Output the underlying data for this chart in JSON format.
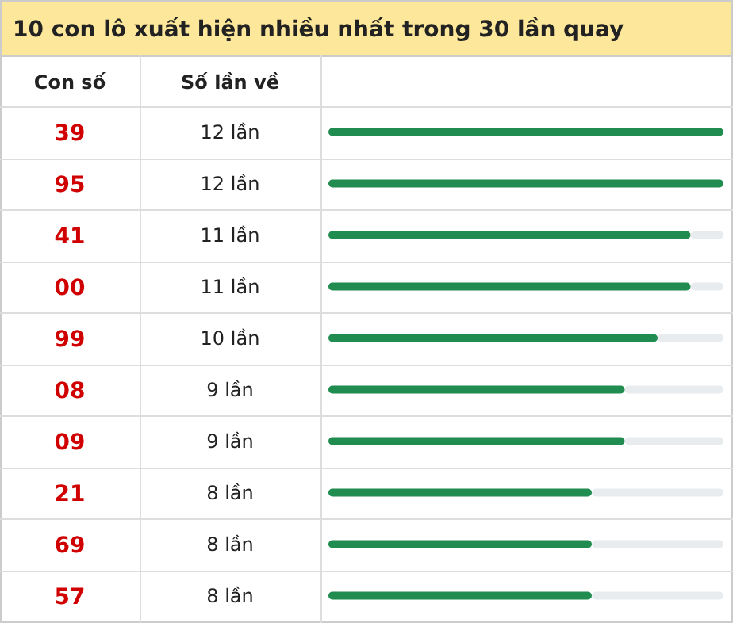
{
  "chart_data": {
    "type": "bar",
    "orientation": "horizontal",
    "title": "10 con lô xuất hiện nhiều nhất trong 30 lần quay",
    "annotations": [
      "Con số",
      "Số lần về"
    ],
    "categories": [
      "39",
      "95",
      "41",
      "00",
      "99",
      "08",
      "09",
      "21",
      "69",
      "57"
    ],
    "values": [
      12,
      12,
      11,
      11,
      10,
      9,
      9,
      8,
      8,
      8
    ],
    "value_labels": [
      "12 lần",
      "12 lần",
      "11 lần",
      "11 lần",
      "10 lần",
      "9 lần",
      "9 lần",
      "8 lần",
      "8 lần",
      "8 lần"
    ],
    "color": "#218c4f",
    "xlim": [
      0,
      12
    ],
    "tick_labels": false
  }
}
